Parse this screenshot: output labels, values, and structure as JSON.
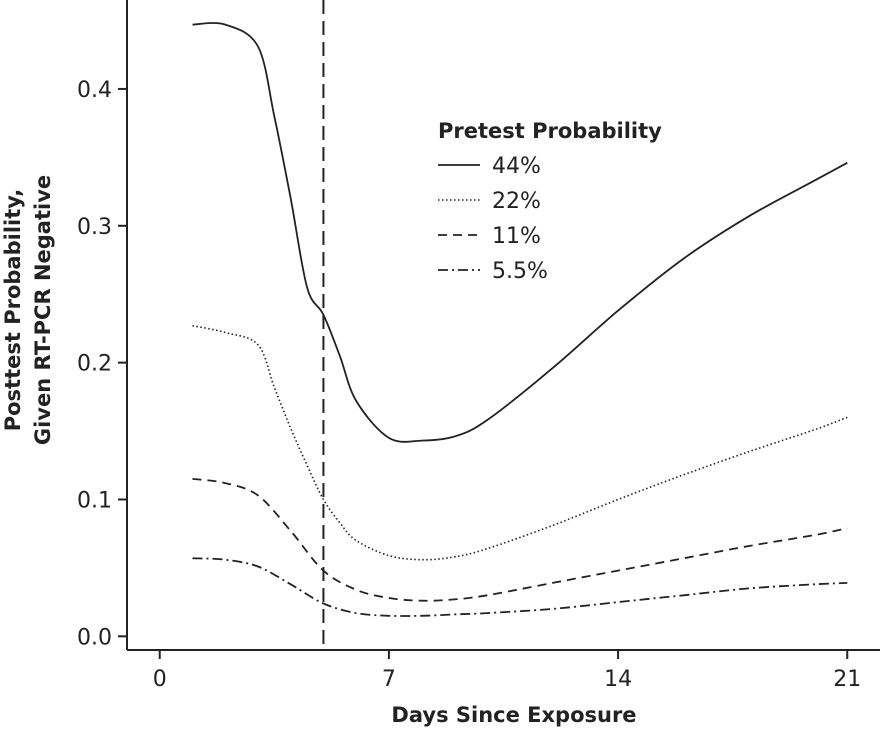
{
  "chart_data": {
    "type": "line",
    "title": "",
    "xlabel": "Days Since Exposure",
    "ylabel": [
      "Posttest Probability,",
      "Given RT-PCR Negative"
    ],
    "xlim": [
      -1,
      22
    ],
    "ylim": [
      -0.01,
      0.465
    ],
    "xticks": [
      0,
      7,
      14,
      21
    ],
    "yticks": [
      0.0,
      0.1,
      0.2,
      0.3,
      0.4
    ],
    "ytick_labels": [
      "0.0",
      "0.1",
      "0.2",
      "0.3",
      "0.4"
    ],
    "grid": false,
    "legend_position": "top-right",
    "legend_title": "Pretest Probability",
    "vline": {
      "x": 5,
      "style": "dashed"
    },
    "series": [
      {
        "name": "44%",
        "style": "solid",
        "x": [
          1,
          2,
          3,
          3.5,
          4,
          4.5,
          5,
          5.5,
          6,
          7,
          8,
          9,
          10,
          12,
          14,
          16,
          18,
          20,
          21
        ],
        "y": [
          0.447,
          0.447,
          0.431,
          0.38,
          0.32,
          0.255,
          0.235,
          0.205,
          0.172,
          0.145,
          0.143,
          0.146,
          0.158,
          0.196,
          0.238,
          0.276,
          0.307,
          0.333,
          0.346
        ]
      },
      {
        "name": "22%",
        "style": "dotted",
        "x": [
          1,
          2,
          3,
          3.5,
          4,
          4.5,
          5,
          5.5,
          6,
          7,
          8,
          9,
          10,
          12,
          14,
          16,
          18,
          20,
          21
        ],
        "y": [
          0.227,
          0.222,
          0.213,
          0.182,
          0.152,
          0.125,
          0.1,
          0.083,
          0.07,
          0.059,
          0.056,
          0.058,
          0.064,
          0.081,
          0.1,
          0.118,
          0.135,
          0.151,
          0.16
        ]
      },
      {
        "name": "11%",
        "style": "dashed",
        "x": [
          1,
          2,
          3,
          4,
          5,
          6,
          7,
          8,
          9,
          10,
          12,
          14,
          16,
          18,
          20,
          21
        ],
        "y": [
          0.115,
          0.112,
          0.103,
          0.077,
          0.048,
          0.034,
          0.028,
          0.026,
          0.027,
          0.03,
          0.039,
          0.048,
          0.057,
          0.066,
          0.074,
          0.079
        ]
      },
      {
        "name": "5.5%",
        "style": "dashdot",
        "x": [
          1,
          2,
          3,
          4,
          5,
          6,
          7,
          8,
          9,
          10,
          12,
          14,
          16,
          18,
          20,
          21
        ],
        "y": [
          0.057,
          0.056,
          0.051,
          0.038,
          0.024,
          0.017,
          0.015,
          0.015,
          0.016,
          0.017,
          0.02,
          0.025,
          0.03,
          0.035,
          0.038,
          0.039
        ]
      }
    ]
  }
}
